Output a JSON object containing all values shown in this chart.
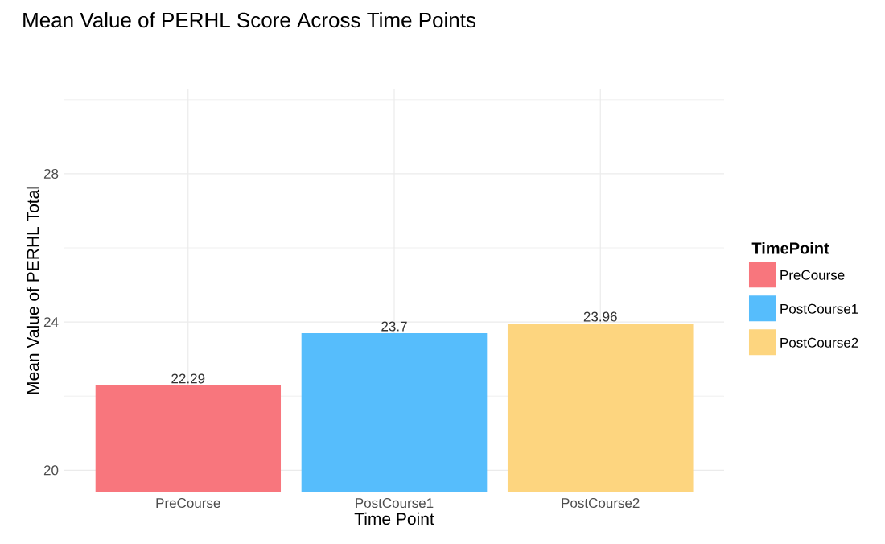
{
  "chart_data": {
    "type": "bar",
    "title": "Mean Value of PERHL Score Across Time Points",
    "xlabel": "Time Point",
    "ylabel": "Mean Value of PERHL Total",
    "legend_title": "TimePoint",
    "categories": [
      "PreCourse",
      "PostCourse1",
      "PostCourse2"
    ],
    "series": [
      {
        "name": "PreCourse",
        "color": "#f8767d",
        "values": [
          22.29,
          null,
          null
        ]
      },
      {
        "name": "PostCourse1",
        "color": "#56bdfc",
        "values": [
          null,
          23.7,
          null
        ]
      },
      {
        "name": "PostCourse2",
        "color": "#fdd57f",
        "values": [
          null,
          null,
          23.96
        ]
      }
    ],
    "ylim": [
      19.4,
      30.3
    ],
    "yticks": [
      20,
      24,
      28
    ],
    "grid": true,
    "legend": "right",
    "data_labels": true
  }
}
